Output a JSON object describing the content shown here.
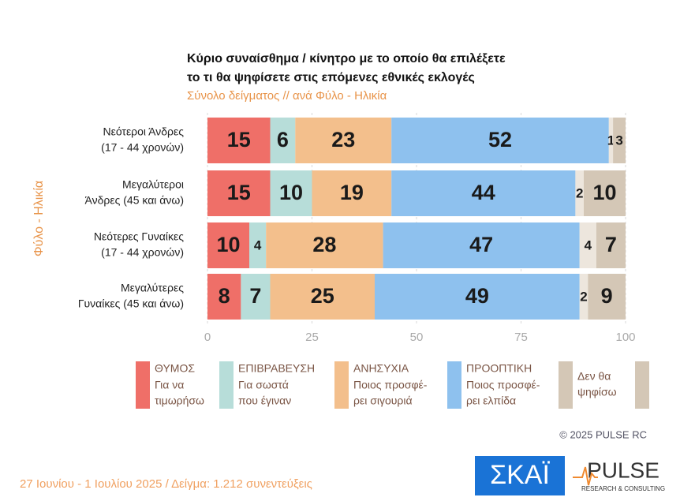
{
  "chart_data": {
    "type": "stacked-barh",
    "title": [
      "Κύριο συναίσθημα / κίνητρο με το οποίο θα επιλέξετε",
      "το τι θα ψηφίσετε στις επόμενες εθνικές εκλογές"
    ],
    "subtitle": "Σύνολο δείγματος // ανά Φύλο - Ηλικία",
    "y_label": "Φύλο - Ηλικία",
    "categories": [
      [
        "Νεότεροι Άνδρες",
        "(17 - 44 χρονών)"
      ],
      [
        "Μεγαλύτεροι",
        "Άνδρες (45 και άνω)"
      ],
      [
        "Νεότερες Γυναίκες",
        "(17 - 44 χρονών)"
      ],
      [
        "Μεγαλύτερες",
        "Γυναίκες (45 και άνω)"
      ]
    ],
    "series": [
      {
        "name": [
          "ΘΥΜΟΣ"
        ],
        "description": [
          "Για να",
          "τιμωρήσω"
        ],
        "color": "#ef6f68",
        "values": [
          15,
          15,
          10,
          8
        ]
      },
      {
        "name": [
          "ΕΠΙΒΡΑΒΕΥΣΗ"
        ],
        "description": [
          "Για σωστά",
          "που έγιναν"
        ],
        "color": "#b7ddd9",
        "values": [
          6,
          10,
          4,
          7
        ]
      },
      {
        "name": [
          "ΑΝΗΣΥΧΙΑ"
        ],
        "description": [
          "Ποιος προσφέ-",
          "ρει σιγουριά"
        ],
        "color": "#f3bf8c",
        "values": [
          23,
          19,
          28,
          25
        ]
      },
      {
        "name": [
          "ΠΡΟΟΠΤΙΚΗ"
        ],
        "description": [
          "Ποιος προσφέ-",
          "ρει ελπίδα"
        ],
        "color": "#8ec1ee",
        "values": [
          52,
          44,
          47,
          49
        ]
      },
      {
        "color": "#ede6dd",
        "values": [
          1,
          2,
          4,
          2
        ]
      },
      {
        "name": [
          "Δεν θα",
          "ψηφίσω"
        ],
        "color": "#d4c7b6",
        "values": [
          3,
          10,
          7,
          9
        ]
      }
    ],
    "xlim": [
      0,
      100
    ],
    "xticks": [
      0,
      25,
      50,
      75,
      100
    ],
    "grid": true,
    "copyright": "© 2025 PULSE RC",
    "footer": "27 Ιουνίου - 1 Ιουλίου 2025  /  Δείγμα:  1.212 συνεντεύξεις",
    "logos": [
      "ΣΚΑΪ",
      "PULSE",
      "RESEARCH & CONSULTING"
    ]
  }
}
